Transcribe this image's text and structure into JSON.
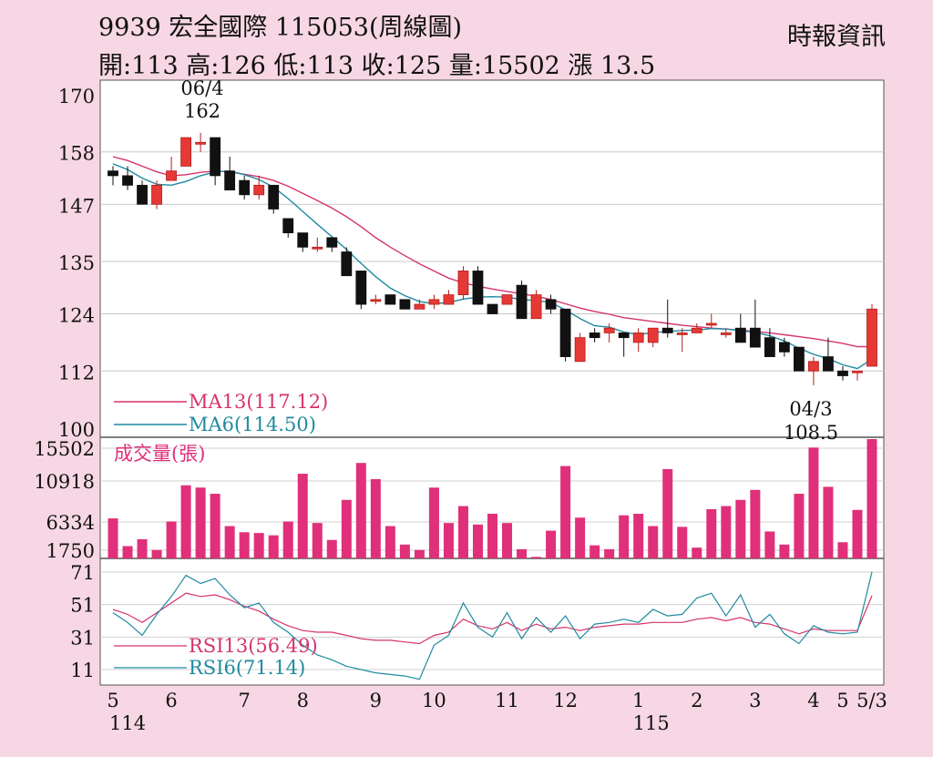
{
  "header": {
    "title": "9939  宏全國際 115053(周線圖)",
    "stats": "開:113 高:126 低:113 收:125 量:15502 漲 13.5",
    "source": "時報資訊"
  },
  "chart_data": [
    {
      "type": "candlestick",
      "y_ticks": [
        "170",
        "158",
        "147",
        "135",
        "124",
        "112",
        "100"
      ],
      "ylim": [
        100,
        170
      ],
      "candles": [
        [
          154,
          153,
          155,
          151
        ],
        [
          153,
          151,
          155,
          150
        ],
        [
          151,
          147,
          152,
          147
        ],
        [
          147,
          151,
          152,
          146
        ],
        [
          152,
          154,
          157,
          152
        ],
        [
          155,
          161,
          161,
          155
        ],
        [
          160,
          160,
          162,
          158
        ],
        [
          161,
          153,
          161,
          151
        ],
        [
          154,
          150,
          157,
          150
        ],
        [
          152,
          149,
          153,
          148
        ],
        [
          149,
          151,
          153,
          148
        ],
        [
          151,
          146,
          151,
          145
        ],
        [
          144,
          141,
          144,
          140
        ],
        [
          141,
          138,
          141,
          137
        ],
        [
          138,
          138,
          140,
          137
        ],
        [
          140,
          138,
          140,
          137
        ],
        [
          137,
          132,
          138,
          132
        ],
        [
          133,
          126,
          133,
          125
        ],
        [
          127,
          127,
          128,
          126
        ],
        [
          128,
          126,
          128,
          126
        ],
        [
          127,
          125,
          127,
          125
        ],
        [
          125,
          126,
          127,
          125
        ],
        [
          126,
          127,
          128,
          125
        ],
        [
          126,
          128,
          129,
          126
        ],
        [
          128,
          133,
          134,
          127
        ],
        [
          133,
          126,
          134,
          126
        ],
        [
          126,
          124,
          126,
          124
        ],
        [
          126,
          128,
          128,
          126
        ],
        [
          130,
          123,
          131,
          123
        ],
        [
          123,
          128,
          129,
          123
        ],
        [
          127,
          125,
          128,
          124
        ],
        [
          125,
          115,
          125,
          114
        ],
        [
          114,
          119,
          120,
          114
        ],
        [
          120,
          119,
          121,
          118
        ],
        [
          120,
          121,
          122,
          118
        ],
        [
          120,
          119,
          120,
          115
        ],
        [
          118,
          120,
          121,
          116
        ],
        [
          118,
          121,
          121,
          117
        ],
        [
          121,
          120,
          127,
          119
        ],
        [
          120,
          120,
          121,
          116
        ],
        [
          120,
          121,
          122,
          120
        ],
        [
          122,
          122,
          124,
          121
        ],
        [
          120,
          120,
          121,
          119
        ],
        [
          121,
          118,
          124,
          118
        ],
        [
          121,
          117,
          127,
          117
        ],
        [
          119,
          115,
          121,
          115
        ],
        [
          118,
          116,
          119,
          115
        ],
        [
          117,
          112,
          117,
          112
        ],
        [
          112,
          114,
          115,
          109
        ],
        [
          115,
          112,
          119,
          112
        ],
        [
          112,
          111,
          113,
          110
        ],
        [
          112,
          112,
          112,
          110
        ],
        [
          113,
          125,
          126,
          113
        ]
      ],
      "series": [
        {
          "name": "MA13(117.12)",
          "color": "#d6336c",
          "values": [
            157,
            156.2,
            155,
            153.8,
            153,
            153.2,
            153.7,
            154,
            153.8,
            153.3,
            152.8,
            152,
            150.8,
            149.3,
            147.8,
            146.2,
            144.4,
            142.3,
            140,
            138,
            136.2,
            134.5,
            133,
            131.5,
            130.5,
            129.8,
            129.2,
            128.7,
            128.2,
            127.7,
            127,
            126.1,
            125.2,
            124.5,
            123.9,
            123.2,
            122.8,
            122.4,
            122,
            121.6,
            121.3,
            121,
            120.8,
            120.6,
            120.3,
            120,
            119.6,
            119.2,
            118.8,
            118.3,
            117.8,
            117.1,
            117.12
          ]
        },
        {
          "name": "MA6(114.50)",
          "color": "#1f8aa0",
          "values": [
            155.5,
            154.3,
            152.5,
            151.2,
            151,
            151.8,
            153,
            153.8,
            154,
            153.2,
            152.2,
            150.6,
            148.2,
            145.5,
            142.8,
            140.2,
            137.5,
            134.6,
            131.8,
            129.4,
            127.8,
            126.6,
            126.1,
            126.4,
            127.1,
            127.5,
            127.6,
            127.5,
            127,
            126.8,
            126.4,
            124.8,
            123,
            121.5,
            121.2,
            120.2,
            119.6,
            120.1,
            120.3,
            120.5,
            120.6,
            120.9,
            120.8,
            120.5,
            120.1,
            119.4,
            118.3,
            116.8,
            115.5,
            114.6,
            113.3,
            112.5,
            114.5
          ]
        }
      ],
      "annotations": [
        {
          "date": "06/4",
          "value": "162"
        },
        {
          "date": "04/3",
          "value": "108.5"
        }
      ]
    },
    {
      "type": "bar",
      "title": "成交量(張)",
      "color": "#e0307a",
      "y_ticks": [
        "15502",
        "10918",
        "6334",
        "1750"
      ],
      "ylim": [
        0,
        15502
      ],
      "values": [
        5200,
        1600,
        2500,
        1100,
        4800,
        9500,
        9200,
        8400,
        4200,
        3400,
        3300,
        3000,
        4800,
        11000,
        4600,
        2400,
        7600,
        12400,
        10300,
        4200,
        1800,
        1100,
        9200,
        4600,
        6800,
        4400,
        5800,
        4600,
        1200,
        200,
        3600,
        12000,
        5300,
        1700,
        1200,
        5600,
        5800,
        4200,
        11600,
        4100,
        1400,
        6400,
        6800,
        7600,
        8900,
        3500,
        1800,
        8400,
        14400,
        9300,
        2100,
        6300,
        15502
      ]
    },
    {
      "type": "line",
      "y_ticks": [
        "71",
        "51",
        "31",
        "11"
      ],
      "ylim": [
        0,
        75
      ],
      "series": [
        {
          "name": "RSI13(56.49)",
          "color": "#d6336c",
          "values": [
            48,
            45,
            40,
            46,
            52,
            58,
            56,
            57,
            54,
            50,
            47,
            42,
            38,
            35,
            34,
            34,
            32,
            30,
            29,
            29,
            28,
            27,
            32,
            34,
            42,
            38,
            36,
            40,
            35,
            39,
            36,
            37,
            35,
            37,
            38,
            39,
            39,
            40,
            40,
            40,
            42,
            43,
            41,
            43,
            40,
            39,
            36,
            33,
            36,
            35,
            35,
            35,
            56.49
          ]
        },
        {
          "name": "RSI6(71.14)",
          "color": "#1f8aa0",
          "values": [
            46,
            40,
            32,
            45,
            56,
            69,
            64,
            67,
            57,
            49,
            52,
            40,
            34,
            26,
            20,
            17,
            13,
            11,
            9,
            8,
            7,
            5,
            26,
            32,
            52,
            37,
            31,
            46,
            30,
            43,
            34,
            44,
            30,
            39,
            40,
            42,
            40,
            48,
            44,
            45,
            55,
            58,
            44,
            57,
            37,
            45,
            33,
            27,
            38,
            34,
            33,
            34,
            71.14
          ]
        }
      ]
    }
  ],
  "x_axis": {
    "month_labels": [
      {
        "label": "5",
        "index": 0
      },
      {
        "label": "6",
        "index": 4
      },
      {
        "label": "7",
        "index": 9
      },
      {
        "label": "8",
        "index": 13
      },
      {
        "label": "9",
        "index": 18
      },
      {
        "label": "10",
        "index": 22
      },
      {
        "label": "11",
        "index": 27
      },
      {
        "label": "12",
        "index": 31
      },
      {
        "label": "1",
        "index": 36
      },
      {
        "label": "2",
        "index": 40
      },
      {
        "label": "3",
        "index": 44
      },
      {
        "label": "4",
        "index": 48
      },
      {
        "label": "5",
        "index": 50
      },
      {
        "label": "5/3",
        "index": 52
      }
    ],
    "year_labels": [
      {
        "label": "114",
        "index": 1
      },
      {
        "label": "115",
        "index": 36
      }
    ]
  },
  "colors": {
    "up": "#e53935",
    "down": "#111111",
    "background": "#f7d7e4",
    "panel": "#ffffff"
  }
}
